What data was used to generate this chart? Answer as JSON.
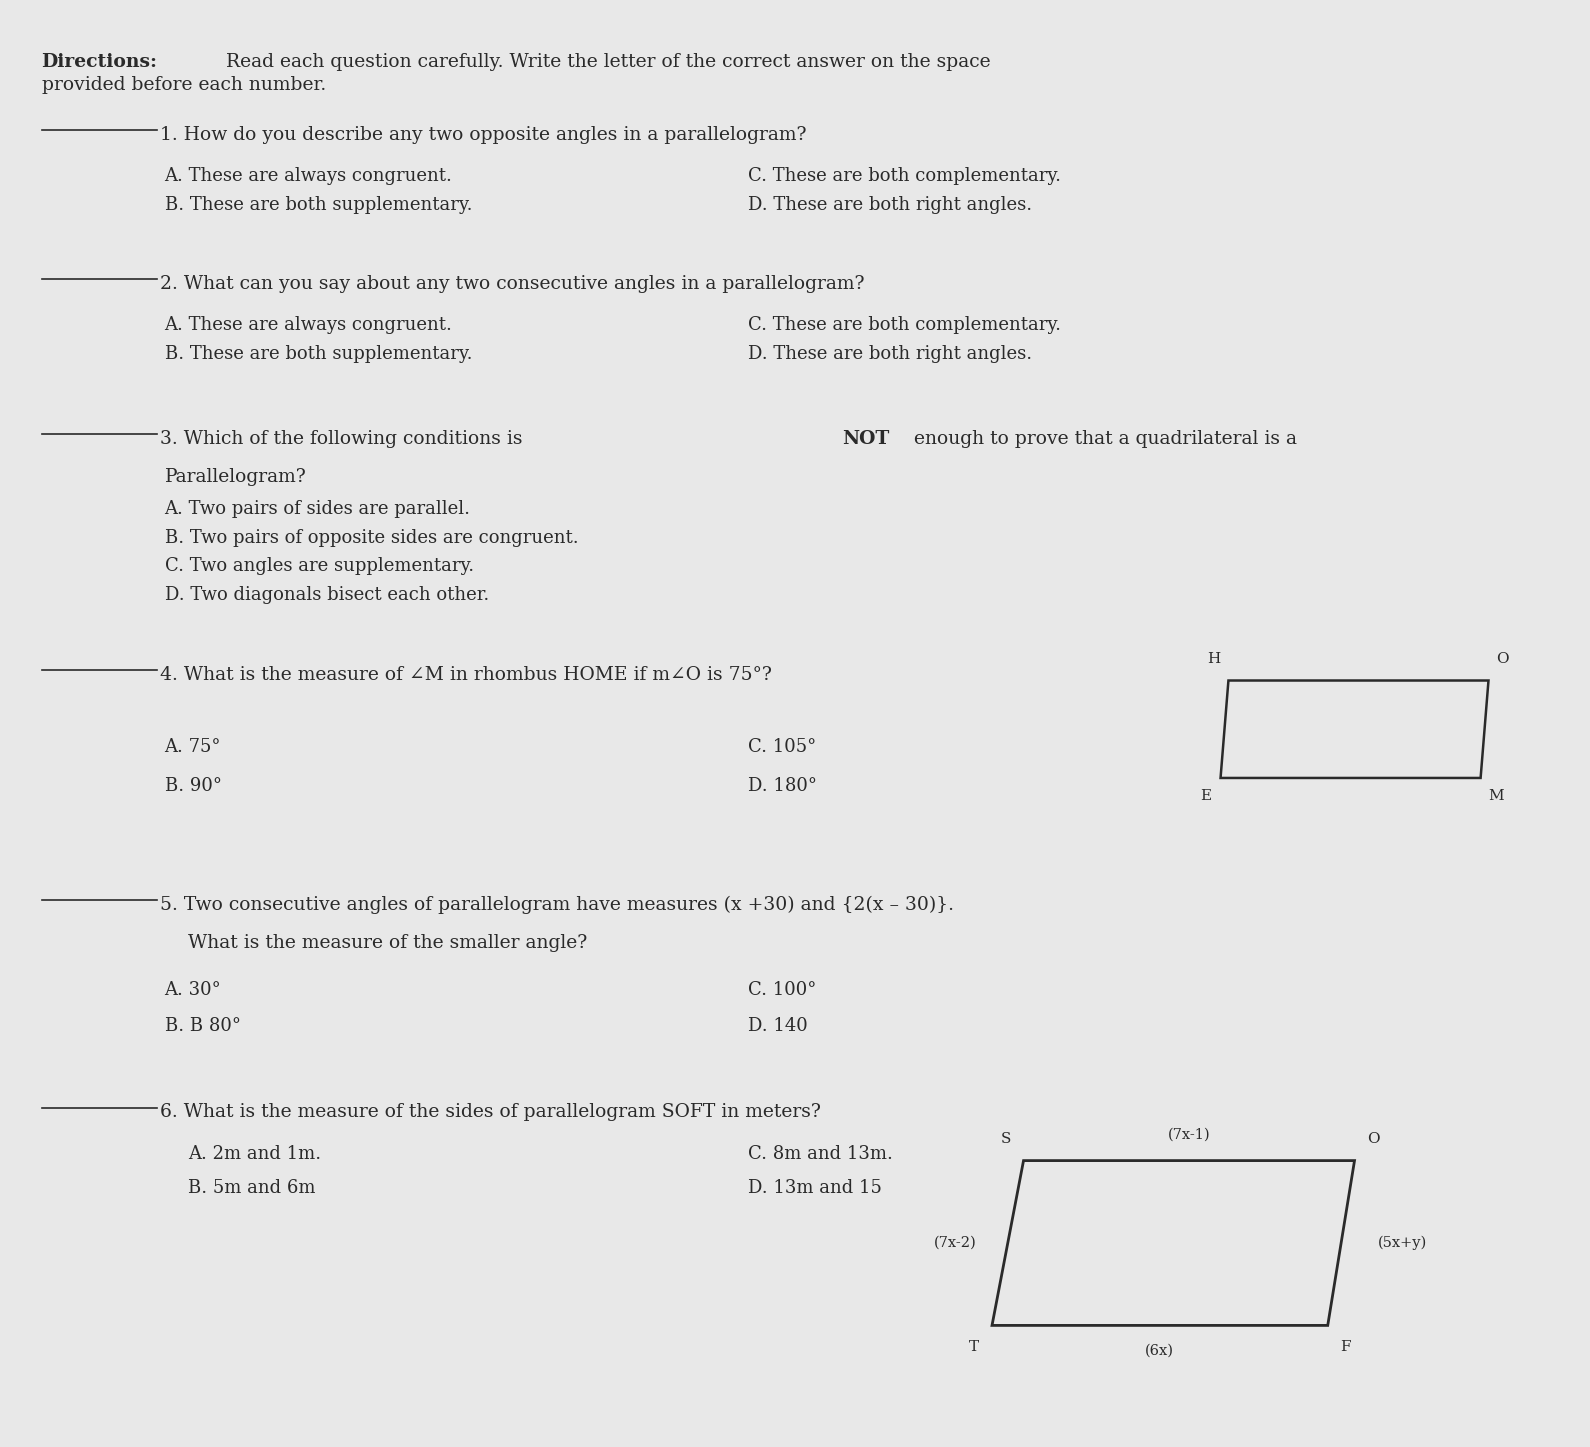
{
  "bg_color": "#e8e8e8",
  "text_color": "#2a2a2a",
  "directions_bold": "Directions:",
  "directions_normal": " Read each question carefully. Write the letter of the correct answer on the space",
  "directions_line2": "provided before each number.",
  "q1_text": "1. How do you describe any two opposite angles in a parallelogram?",
  "q1_choiceA": "A. These are always congruent.",
  "q1_choiceC": "C. These are both complementary.",
  "q1_choiceB": "B. These are both supplementary.",
  "q1_choiceD": "D. These are both right angles.",
  "q2_text": "2. What can you say about any two consecutive angles in a parallelogram?",
  "q2_choiceA": "A. These are always congruent.",
  "q2_choiceC": "C. These are both complementary.",
  "q2_choiceB": "B. These are both supplementary.",
  "q2_choiceD": "D. These are both right angles.",
  "q3_pre": "3. Which of the following conditions is ",
  "q3_bold": "NOT",
  "q3_post": " enough to prove that a quadrilateral is a",
  "q3_line2": "Parallelogram?",
  "q3_choiceA": "A. Two pairs of sides are parallel.",
  "q3_choiceB": "B. Two pairs of opposite sides are congruent.",
  "q3_choiceC": "C. Two angles are supplementary.",
  "q3_choiceD": "D. Two diagonals bisect each other.",
  "q4_text": "4. What is the measure of ∠M in rhombus HOME if m∠O is 75°?",
  "q4_choiceA": "A. 75°",
  "q4_choiceC": "C. 105°",
  "q4_choiceB": "B. 90°",
  "q4_choiceD": "D. 180°",
  "q4_H": "H",
  "q4_O": "O",
  "q4_E": "E",
  "q4_M": "M",
  "q5_text": "5. Two consecutive angles of parallelogram have measures (x +30) and {2(x – 30)}.",
  "q5_line2": "What is the measure of the smaller angle?",
  "q5_choiceA": "A. 30°",
  "q5_choiceC": "C. 100°",
  "q5_choiceB": "B. B 80°",
  "q5_choiceD": "D. 140",
  "q6_text": "6. What is the measure of the sides of parallelogram SOFT in meters?",
  "q6_choiceA": "A. 2m and 1m.",
  "q6_choiceC": "C. 8m and 13m.",
  "q6_choiceB": "B. 5m and 6m",
  "q6_choiceD": "D. 13m and 15",
  "q6_S": "S",
  "q6_O": "O",
  "q6_F": "F",
  "q6_T": "T",
  "q6_top": "(7x-1)",
  "q6_bottom": "(6x)",
  "q6_left": "(7x-2)",
  "q6_right": "(5x+y)"
}
